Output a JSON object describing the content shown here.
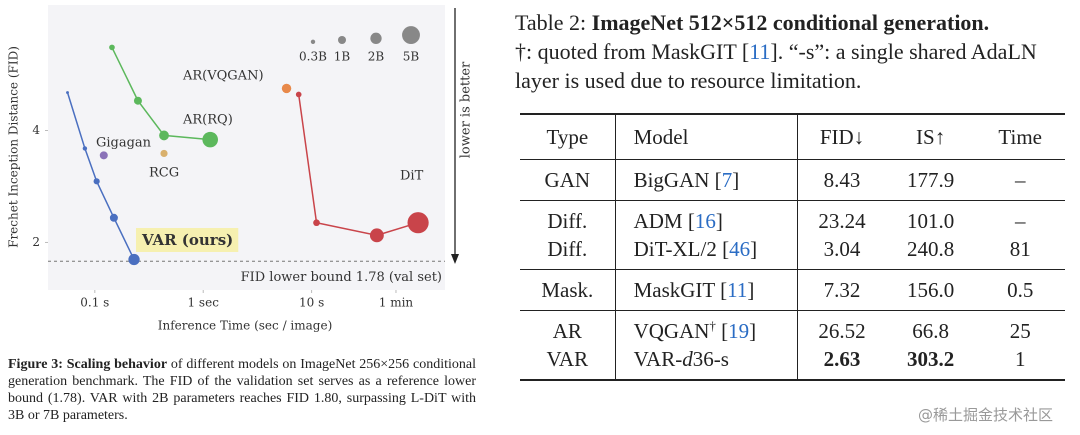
{
  "chart_data": {
    "type": "scatter",
    "x_label": "Inference Time (sec / image)",
    "y_label": "Frechet Inception Distance (FID)",
    "xlog": true,
    "ylog": true,
    "grid": false,
    "xlim": [
      0.037,
      170
    ],
    "ylim": [
      1.49,
      8.7
    ],
    "xticks": [
      {
        "value": 0.1,
        "label": "0.1 s"
      },
      {
        "value": 1,
        "label": "1 sec"
      },
      {
        "value": 10,
        "label": "10 s"
      },
      {
        "value": 60,
        "label": "1 min"
      }
    ],
    "yticks": [
      2,
      4
    ],
    "series": [
      {
        "name": "VAR (ours)",
        "color": "#4a6fc0",
        "x": [
          0.056,
          0.081,
          0.104,
          0.15,
          0.23
        ],
        "values": [
          5.06,
          3.58,
          2.92,
          2.33,
          1.8
        ],
        "sizes": [
          0.13,
          0.31,
          0.6,
          1.0,
          2.0
        ]
      },
      {
        "name": "AR(RQ)",
        "color": "#5cb85c",
        "x": [
          0.144,
          0.25,
          0.435,
          1.16
        ],
        "values": [
          6.69,
          4.81,
          3.88,
          3.78
        ],
        "sizes": [
          0.5,
          1.0,
          1.5,
          3.8
        ]
      },
      {
        "name": "DiT",
        "color": "#c9444a",
        "x": [
          7.6,
          11.1,
          40,
          96
        ],
        "values": [
          5.0,
          2.26,
          2.09,
          2.26
        ],
        "sizes": [
          0.5,
          0.7,
          3,
          7
        ]
      },
      {
        "name": "AR(VQGAN)",
        "color": "#e8894a",
        "x": [
          5.87
        ],
        "values": [
          5.19
        ],
        "sizes": [
          1.4
        ]
      },
      {
        "name": "Gigagan",
        "color": "#8a72b8",
        "x": [
          0.121
        ],
        "values": [
          3.43
        ],
        "sizes": [
          1.0
        ]
      },
      {
        "name": "RCG",
        "color": "#d9b06c",
        "x": [
          0.435
        ],
        "values": [
          3.47
        ],
        "sizes": [
          0.8
        ]
      }
    ],
    "size_legend": [
      {
        "value": 0.3,
        "label": "0.3B"
      },
      {
        "value": 1,
        "label": "1B"
      },
      {
        "value": 2,
        "label": "2B"
      },
      {
        "value": 5,
        "label": "5B"
      }
    ],
    "lower_bound": {
      "value": 1.78,
      "label": "FID lower bound 1.78 (val set)"
    },
    "annotation": "lower is better"
  },
  "figure_caption": {
    "label": "Figure 3:",
    "bold": "Scaling behavior",
    "text": "of different models on ImageNet 256×256 conditional generation benchmark. The FID of the validation set serves as a reference lower bound (1.78). VAR with 2B parameters reaches FID 1.80, surpassing L-DiT with 3B or 7B parameters."
  },
  "table": {
    "caption": [
      {
        "t": "Table 2: "
      },
      {
        "t": "ImageNet 512×512 conditional generation.",
        "bold": true
      }
    ],
    "note": [
      {
        "t": "†: quoted from MaskGIT ["
      },
      {
        "t": "11",
        "ref": true
      },
      {
        "t": "]. “-s”: a single shared AdaLN layer is used due to resource limitation."
      }
    ],
    "header": [
      [
        {
          "t": "Type"
        }
      ],
      [
        {
          "t": "Model"
        }
      ],
      [
        {
          "t": "FID↓"
        }
      ],
      [
        {
          "t": "IS↑"
        }
      ],
      [
        {
          "t": "Time"
        }
      ]
    ],
    "groups": [
      [
        [
          [
            {
              "t": "GAN"
            }
          ],
          [
            {
              "t": "BigGAN ["
            },
            {
              "t": "7",
              "ref": true
            },
            {
              "t": "]"
            }
          ],
          [
            {
              "t": "8.43"
            }
          ],
          [
            {
              "t": "177.9"
            }
          ],
          [
            {
              "t": "–"
            }
          ]
        ]
      ],
      [
        [
          [
            {
              "t": "Diff."
            }
          ],
          [
            {
              "t": "ADM ["
            },
            {
              "t": "16",
              "ref": true
            },
            {
              "t": "]"
            }
          ],
          [
            {
              "t": "23.24"
            }
          ],
          [
            {
              "t": "101.0"
            }
          ],
          [
            {
              "t": "–"
            }
          ]
        ],
        [
          [
            {
              "t": "Diff."
            }
          ],
          [
            {
              "t": "DiT-XL/2 ["
            },
            {
              "t": "46",
              "ref": true
            },
            {
              "t": "]"
            }
          ],
          [
            {
              "t": "3.04"
            }
          ],
          [
            {
              "t": "240.8"
            }
          ],
          [
            {
              "t": "81"
            }
          ]
        ]
      ],
      [
        [
          [
            {
              "t": "Mask."
            }
          ],
          [
            {
              "t": "MaskGIT ["
            },
            {
              "t": "11",
              "ref": true
            },
            {
              "t": "]"
            }
          ],
          [
            {
              "t": "7.32"
            }
          ],
          [
            {
              "t": "156.0"
            }
          ],
          [
            {
              "t": "0.5"
            }
          ]
        ]
      ],
      [
        [
          [
            {
              "t": "AR"
            }
          ],
          [
            {
              "t": "VQGAN"
            },
            {
              "t": "†",
              "sup": true
            },
            {
              "t": " ["
            },
            {
              "t": "19",
              "ref": true
            },
            {
              "t": "]"
            }
          ],
          [
            {
              "t": "26.52"
            }
          ],
          [
            {
              "t": "66.8"
            }
          ],
          [
            {
              "t": "25"
            }
          ]
        ],
        [
          [
            {
              "t": "VAR"
            }
          ],
          [
            {
              "t": "VAR-"
            },
            {
              "t": "d",
              "italic": true
            },
            {
              "t": "36-s"
            }
          ],
          [
            {
              "t": "2.63",
              "bold": true
            }
          ],
          [
            {
              "t": "303.2",
              "bold": true
            }
          ],
          [
            {
              "t": "1"
            }
          ]
        ]
      ]
    ]
  },
  "watermark": "@稀土掘金技术社区"
}
